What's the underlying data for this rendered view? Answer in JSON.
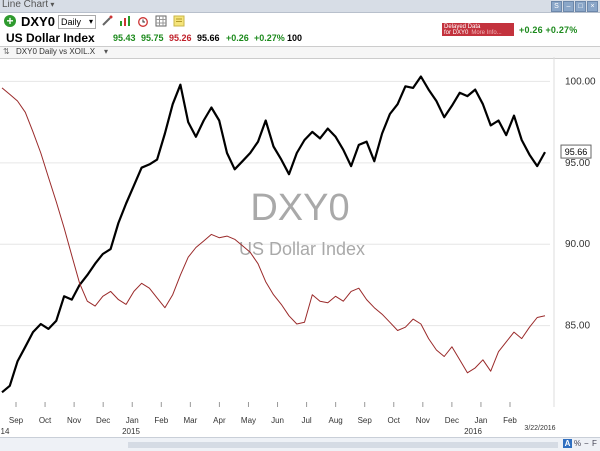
{
  "window": {
    "title": "Line Chart"
  },
  "toolbar": {
    "symbol": "DXY0",
    "period": "Daily",
    "delayed_line1": "Delayed Data",
    "delayed_line2": "for DXY0",
    "delayed_more": "More Info..."
  },
  "header": {
    "name": "US Dollar Index",
    "open": "95.43",
    "high": "95.75",
    "low": "95.26",
    "close": "95.66",
    "change": "+0.26",
    "percent": "+0.27%",
    "volume": "100",
    "change_right": "+0.26 +0.27%"
  },
  "legend": {
    "text": "DXY0 Daily vs XOIL.X"
  },
  "watermark": {
    "symbol": "DXY0",
    "name": "US Dollar Index"
  },
  "footer": {
    "last_date": "3/22/2016",
    "buttons": [
      "A",
      "%",
      "F"
    ]
  },
  "colors": {
    "primary_line": "#000000",
    "compare_line": "#9a2a2a",
    "grid": "#e6e6e6",
    "up": "#1c8a1c",
    "down": "#c0202a"
  },
  "chart_data": {
    "type": "line",
    "x_tick_labels": [
      "Sep",
      "Oct",
      "Nov",
      "Dec",
      "Jan",
      "Feb",
      "Mar",
      "Apr",
      "May",
      "Jun",
      "Jul",
      "Aug",
      "Sep",
      "Oct",
      "Nov",
      "Dec",
      "Jan",
      "Feb"
    ],
    "year_labels": [
      "14",
      "2015",
      "2016"
    ],
    "y_ticks": [
      "100.00",
      "95.00",
      "90.00",
      "85.00"
    ],
    "ylim": [
      80,
      101.5
    ],
    "last_value": "95.66",
    "series": [
      {
        "name": "DXY0",
        "values": [
          80.9,
          81.3,
          82.8,
          83.7,
          84.6,
          85.1,
          84.8,
          85.3,
          86.8,
          86.6,
          87.5,
          88.1,
          88.8,
          89.4,
          89.7,
          91.3,
          92.5,
          93.6,
          94.7,
          94.9,
          95.2,
          96.8,
          98.6,
          99.8,
          97.5,
          96.6,
          97.6,
          98.4,
          97.6,
          95.6,
          94.6,
          95.1,
          95.6,
          96.3,
          97.6,
          96.0,
          95.2,
          94.3,
          95.6,
          96.4,
          96.9,
          96.5,
          97.1,
          96.6,
          95.8,
          94.8,
          96.1,
          96.3,
          95.1,
          96.8,
          98.0,
          98.6,
          99.7,
          99.6,
          100.3,
          99.5,
          98.8,
          97.8,
          98.5,
          99.3,
          99.1,
          99.5,
          98.6,
          97.3,
          97.6,
          96.7,
          97.9,
          96.4,
          95.5,
          94.8,
          95.66
        ]
      },
      {
        "name": "XOIL.X",
        "values": [
          99.6,
          99.2,
          98.8,
          98.1,
          96.9,
          95.6,
          94.1,
          92.6,
          91.0,
          89.3,
          87.6,
          86.5,
          86.2,
          86.8,
          87.1,
          86.6,
          86.3,
          87.1,
          87.6,
          87.3,
          86.7,
          86.1,
          86.9,
          88.1,
          89.2,
          89.8,
          90.2,
          90.6,
          90.4,
          90.5,
          90.3,
          89.9,
          89.5,
          88.8,
          87.7,
          86.9,
          86.3,
          85.6,
          85.1,
          85.2,
          86.9,
          86.5,
          86.4,
          86.8,
          86.5,
          87.1,
          87.3,
          86.6,
          86.1,
          85.7,
          85.2,
          84.7,
          84.9,
          85.4,
          85.1,
          84.2,
          83.5,
          83.1,
          83.7,
          82.9,
          82.1,
          82.4,
          82.9,
          82.2,
          83.4,
          84.0,
          84.6,
          84.2,
          84.9,
          85.5,
          85.6
        ]
      }
    ]
  }
}
